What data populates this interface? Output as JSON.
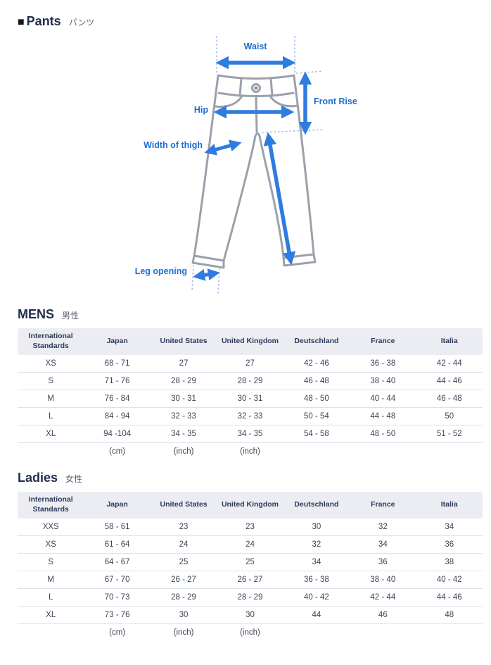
{
  "page": {
    "title": "Pants",
    "title_ja": "パンツ"
  },
  "diagram": {
    "labels": {
      "waist": "Waist",
      "hip": "Hip",
      "front_rise": "Front Rise",
      "width_of_thigh": "Width of thigh",
      "leg_opening": "Leg opening"
    },
    "colors": {
      "arrow_blue": "#2e7ce0",
      "label_blue": "#1c6fd3",
      "guide_dash_blue": "#9cbcf0",
      "pants_outline_gray": "#9aa1ab"
    }
  },
  "colors": {
    "heading_navy": "#1f2d4e",
    "subtitle_gray": "#5a6170",
    "table_header_bg": "#ebedf2",
    "cell_text": "#3d4559"
  },
  "tables": [
    {
      "title": "MENS",
      "title_ja": "男性",
      "columns": [
        "International Standards",
        "Japan",
        "United States",
        "United Kingdom",
        "Deutschland",
        "France",
        "Italia"
      ],
      "rows": [
        [
          "XS",
          "68 - 71",
          "27",
          "27",
          "42 - 46",
          "36 - 38",
          "42 - 44"
        ],
        [
          "S",
          "71 - 76",
          "28 - 29",
          "28 - 29",
          "46 - 48",
          "38 - 40",
          "44 - 46"
        ],
        [
          "M",
          "76 - 84",
          "30 - 31",
          "30 - 31",
          "48 - 50",
          "40 - 44",
          "46 - 48"
        ],
        [
          "L",
          "84 - 94",
          "32 - 33",
          "32 - 33",
          "50 - 54",
          "44 - 48",
          "50"
        ],
        [
          "XL",
          "94 -104",
          "34 - 35",
          "34 - 35",
          "54 - 58",
          "48 - 50",
          "51 - 52"
        ]
      ],
      "units_row": [
        "",
        "(cm)",
        "(inch)",
        "(inch)",
        "",
        "",
        ""
      ]
    },
    {
      "title": "Ladies",
      "title_ja": "女性",
      "columns": [
        "International Standards",
        "Japan",
        "United States",
        "United Kingdom",
        "Deutschland",
        "France",
        "Italia"
      ],
      "rows": [
        [
          "XXS",
          "58 - 61",
          "23",
          "23",
          "30",
          "32",
          "34"
        ],
        [
          "XS",
          "61 - 64",
          "24",
          "24",
          "32",
          "34",
          "36"
        ],
        [
          "S",
          "64 - 67",
          "25",
          "25",
          "34",
          "36",
          "38"
        ],
        [
          "M",
          "67 - 70",
          "26 - 27",
          "26 - 27",
          "36 - 38",
          "38 - 40",
          "40 - 42"
        ],
        [
          "L",
          "70 - 73",
          "28 - 29",
          "28 - 29",
          "40 - 42",
          "42 - 44",
          "44 - 46"
        ],
        [
          "XL",
          "73 - 76",
          "30",
          "30",
          "44",
          "46",
          "48"
        ]
      ],
      "units_row": [
        "",
        "(cm)",
        "(inch)",
        "(inch)",
        "",
        "",
        ""
      ]
    }
  ]
}
